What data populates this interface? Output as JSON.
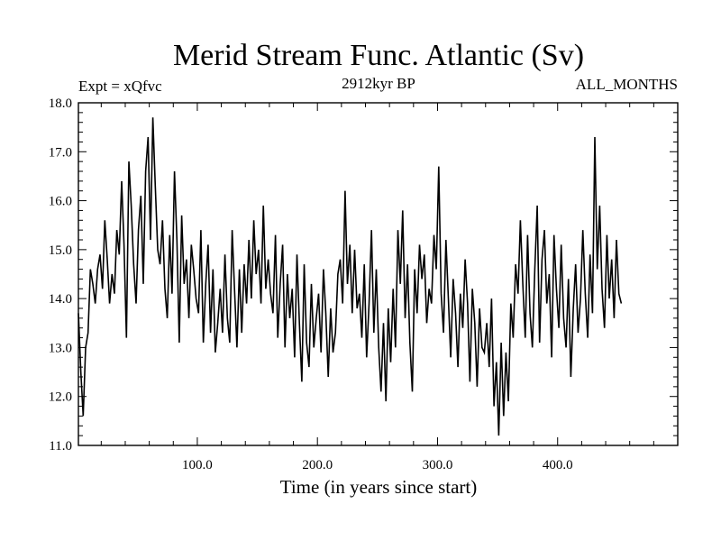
{
  "chart_data": {
    "type": "line",
    "title": "Merid Stream Func. Atlantic (Sv)",
    "subtitle_left": "Expt = xQfvc",
    "subtitle_center": "2912kyr BP",
    "subtitle_right": "ALL_MONTHS",
    "xlabel": "Time (in years since start)",
    "ylabel": "",
    "xlim": [
      1,
      500
    ],
    "ylim": [
      11.0,
      18.0
    ],
    "x_ticks": [
      100,
      200,
      300,
      400
    ],
    "x_tick_labels": [
      "100.0",
      "200.0",
      "300.0",
      "400.0"
    ],
    "y_ticks": [
      11,
      12,
      13,
      14,
      15,
      16,
      17,
      18
    ],
    "y_tick_labels": [
      "11.0",
      "12.0",
      "13.0",
      "14.0",
      "15.0",
      "16.0",
      "17.0",
      "18.0"
    ],
    "series": [
      {
        "name": "Merid Stream Func. Atlantic",
        "x_start": 1,
        "x_step": 2,
        "values": [
          13.7,
          12.5,
          11.6,
          13.0,
          13.3,
          14.6,
          14.3,
          13.9,
          14.6,
          14.9,
          14.2,
          15.6,
          14.8,
          13.9,
          14.5,
          14.1,
          15.4,
          14.9,
          16.4,
          15.1,
          13.2,
          16.8,
          15.9,
          14.7,
          13.9,
          15.4,
          16.1,
          14.3,
          16.6,
          17.3,
          15.2,
          17.7,
          16.3,
          15.0,
          14.7,
          15.6,
          14.2,
          13.6,
          15.3,
          14.1,
          16.6,
          15.2,
          13.1,
          15.7,
          14.3,
          14.8,
          13.6,
          15.1,
          14.6,
          14.0,
          13.7,
          15.4,
          13.1,
          14.3,
          15.1,
          13.3,
          14.6,
          12.9,
          13.5,
          14.2,
          13.3,
          14.9,
          13.6,
          13.1,
          15.4,
          14.2,
          13.0,
          14.6,
          13.3,
          14.7,
          13.9,
          15.2,
          14.0,
          15.6,
          14.5,
          15.0,
          13.9,
          15.9,
          14.2,
          14.8,
          14.1,
          13.7,
          15.3,
          13.2,
          14.3,
          15.1,
          13.0,
          14.5,
          13.6,
          14.2,
          12.8,
          14.9,
          13.5,
          12.3,
          14.7,
          13.1,
          12.6,
          14.3,
          13.0,
          13.6,
          14.1,
          12.9,
          14.6,
          13.7,
          12.4,
          13.8,
          12.9,
          13.3,
          14.5,
          14.8,
          13.9,
          16.2,
          14.3,
          15.1,
          13.7,
          15.0,
          13.8,
          14.1,
          13.2,
          14.7,
          12.8,
          13.9,
          15.4,
          13.3,
          14.6,
          13.0,
          12.1,
          13.5,
          11.9,
          13.8,
          12.7,
          14.2,
          13.0,
          15.4,
          14.3,
          15.8,
          13.6,
          14.7,
          13.1,
          12.1,
          14.6,
          13.7,
          15.1,
          14.4,
          14.9,
          13.5,
          14.2,
          13.9,
          15.3,
          14.6,
          16.7,
          14.1,
          13.3,
          15.2,
          14.0,
          12.8,
          14.4,
          13.7,
          12.6,
          14.1,
          13.4,
          14.8,
          13.9,
          12.3,
          14.2,
          13.5,
          12.2,
          13.8,
          13.0,
          12.9,
          13.5,
          12.6,
          14.0,
          11.8,
          12.7,
          11.2,
          13.1,
          11.6,
          12.9,
          11.9,
          13.9,
          13.2,
          14.7,
          14.1,
          15.6,
          14.3,
          13.2,
          15.3,
          13.7,
          13.0,
          14.6,
          15.9,
          13.1,
          14.8,
          15.4,
          13.9,
          14.5,
          12.8,
          15.3,
          14.2,
          13.4,
          15.1,
          13.6,
          13.0,
          14.4,
          12.4,
          13.8,
          14.7,
          13.3,
          14.0,
          15.4,
          14.1,
          13.2,
          14.9,
          13.7,
          17.3,
          14.6,
          15.9,
          14.2,
          13.4,
          15.3,
          14.0,
          14.8,
          13.6,
          15.2,
          14.1,
          13.9
        ]
      }
    ]
  }
}
